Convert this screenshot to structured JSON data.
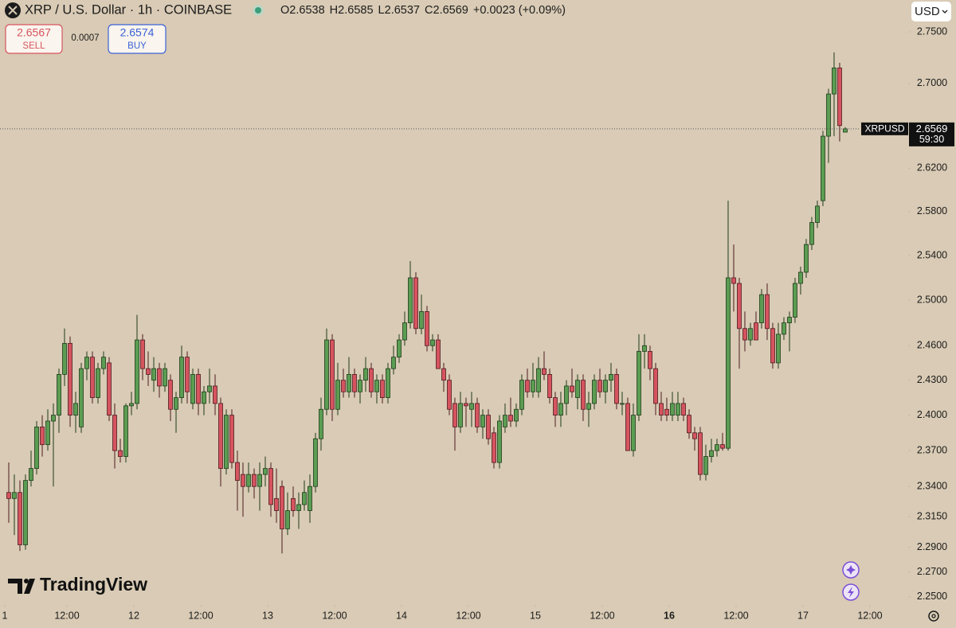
{
  "header": {
    "title": "XRP / U.S. Dollar · 1h · COINBASE",
    "ohlc_labels": [
      "O",
      "H",
      "L",
      "C"
    ],
    "change": "+0.0023 (+0.09%)"
  },
  "trade": {
    "sell_price": 2.6567,
    "sell_label": "SELL",
    "spread": 0.0007,
    "buy_price": 2.6574,
    "buy_label": "BUY"
  },
  "currency": "USD",
  "branding": "TradingView",
  "chart_data": {
    "type": "candlestick",
    "up_color": "#5b9d52",
    "down_color": "#d6545f",
    "log_scale": true,
    "grid": false,
    "ylim": [
      2.2436,
      2.7813
    ],
    "yticks": [
      {
        "value": 2.75,
        "label": "2.7500"
      },
      {
        "value": 2.7,
        "label": "2.7000"
      },
      {
        "value": 2.62,
        "label": "2.6200"
      },
      {
        "value": 2.58,
        "label": "2.5800"
      },
      {
        "value": 2.54,
        "label": "2.5400"
      },
      {
        "value": 2.5,
        "label": "2.5000"
      },
      {
        "value": 2.46,
        "label": "2.4600"
      },
      {
        "value": 2.43,
        "label": "2.4300"
      },
      {
        "value": 2.4,
        "label": "2.4000"
      },
      {
        "value": 2.37,
        "label": "2.3700"
      },
      {
        "value": 2.34,
        "label": "2.3400"
      },
      {
        "value": 2.315,
        "label": "2.3150"
      },
      {
        "value": 2.29,
        "label": "2.2900"
      },
      {
        "value": 2.27,
        "label": "2.2700"
      },
      {
        "value": 2.25,
        "label": "2.2500"
      }
    ],
    "xlim": [
      -1.571,
      161.29
    ],
    "xticks": [
      {
        "value": -0.71,
        "label": "1"
      },
      {
        "value": 10.43,
        "label": "12:00"
      },
      {
        "value": 22.43,
        "label": "12"
      },
      {
        "value": 34.43,
        "label": "12:00"
      },
      {
        "value": 46.43,
        "label": "13"
      },
      {
        "value": 58.43,
        "label": "12:00"
      },
      {
        "value": 70.43,
        "label": "14"
      },
      {
        "value": 82.43,
        "label": "12:00"
      },
      {
        "value": 94.43,
        "label": "15"
      },
      {
        "value": 106.43,
        "label": "12:00"
      },
      {
        "value": 118.43,
        "label": "16",
        "bold": true
      },
      {
        "value": 130.43,
        "label": "12:00"
      },
      {
        "value": 142.43,
        "label": "17"
      },
      {
        "value": 154.43,
        "label": "12:00"
      }
    ],
    "open": [
      2.335,
      2.33,
      2.335,
      2.292,
      2.345,
      2.355,
      2.39,
      2.375,
      2.395,
      2.4,
      2.435,
      2.462,
      2.4,
      2.39,
      2.44,
      2.45,
      2.415,
      2.44,
      2.445,
      2.4,
      2.37,
      2.365,
      2.408,
      2.41,
      2.465,
      2.44,
      2.43,
      2.44,
      2.425,
      2.43,
      2.405,
      2.415,
      2.45,
      2.41,
      2.435,
      2.41,
      2.42,
      2.425,
      2.41,
      2.355,
      2.4,
      2.36,
      2.35,
      2.34,
      2.35,
      2.34,
      2.35,
      2.355,
      2.33,
      2.34,
      2.305,
      2.33,
      2.32,
      2.325,
      2.32,
      2.34,
      2.38,
      2.405,
      2.465,
      2.405,
      2.43,
      2.42,
      2.435,
      2.42,
      2.43,
      2.44,
      2.42,
      2.43,
      2.415,
      2.44,
      2.45,
      2.465,
      2.48,
      2.52,
      2.475,
      2.49,
      2.46,
      2.465,
      2.44,
      2.43,
      2.41,
      2.39,
      2.41,
      2.405,
      2.41,
      2.39,
      2.4,
      2.385,
      2.36,
      2.39,
      2.4,
      2.395,
      2.405,
      2.43,
      2.42,
      2.42,
      2.44,
      2.435,
      2.415,
      2.4,
      2.41,
      2.425,
      2.415,
      2.43,
      2.405,
      2.41,
      2.43,
      2.42,
      2.43,
      2.435,
      2.41,
      2.41,
      2.37,
      2.4,
      2.455,
      2.455,
      2.44,
      2.41,
      2.405,
      2.4,
      2.4,
      2.41,
      2.4,
      2.385,
      2.385,
      2.35,
      2.365,
      2.37,
      2.375,
      2.372,
      2.52,
      2.515,
      2.475,
      2.465,
      2.48,
      2.48,
      2.505,
      2.475,
      2.445,
      2.47,
      2.48,
      2.485,
      2.515,
      2.525,
      2.55,
      2.57,
      2.59,
      2.65,
      2.69,
      2.715,
      2.6538
    ],
    "high": [
      2.36,
      2.35,
      2.345,
      2.35,
      2.37,
      2.395,
      2.4,
      2.405,
      2.41,
      2.44,
      2.475,
      2.468,
      2.42,
      2.445,
      2.455,
      2.455,
      2.445,
      2.455,
      2.45,
      2.41,
      2.38,
      2.41,
      2.42,
      2.487,
      2.47,
      2.455,
      2.45,
      2.445,
      2.445,
      2.435,
      2.42,
      2.46,
      2.455,
      2.44,
      2.44,
      2.425,
      2.44,
      2.435,
      2.415,
      2.405,
      2.405,
      2.37,
      2.36,
      2.36,
      2.355,
      2.36,
      2.365,
      2.36,
      2.355,
      2.345,
      2.335,
      2.34,
      2.335,
      2.345,
      2.35,
      2.385,
      2.415,
      2.475,
      2.47,
      2.445,
      2.44,
      2.45,
      2.44,
      2.435,
      2.45,
      2.445,
      2.435,
      2.435,
      2.445,
      2.46,
      2.47,
      2.49,
      2.535,
      2.525,
      2.505,
      2.495,
      2.47,
      2.47,
      2.445,
      2.435,
      2.415,
      2.42,
      2.415,
      2.42,
      2.415,
      2.405,
      2.405,
      2.39,
      2.4,
      2.41,
      2.415,
      2.41,
      2.435,
      2.44,
      2.445,
      2.45,
      2.455,
      2.44,
      2.42,
      2.42,
      2.43,
      2.44,
      2.435,
      2.435,
      2.42,
      2.435,
      2.44,
      2.435,
      2.445,
      2.44,
      2.42,
      2.415,
      2.41,
      2.47,
      2.47,
      2.46,
      2.445,
      2.42,
      2.415,
      2.42,
      2.42,
      2.415,
      2.405,
      2.39,
      2.39,
      2.375,
      2.38,
      2.38,
      2.385,
      2.59,
      2.55,
      2.52,
      2.49,
      2.48,
      2.49,
      2.51,
      2.515,
      2.48,
      2.48,
      2.485,
      2.49,
      2.52,
      2.53,
      2.555,
      2.575,
      2.59,
      2.655,
      2.695,
      2.73,
      2.72,
      2.6585
    ],
    "low": [
      2.31,
      2.3,
      2.287,
      2.288,
      2.34,
      2.35,
      2.365,
      2.37,
      2.34,
      2.385,
      2.425,
      2.39,
      2.385,
      2.385,
      2.43,
      2.41,
      2.41,
      2.435,
      2.395,
      2.355,
      2.36,
      2.36,
      2.4,
      2.405,
      2.43,
      2.425,
      2.42,
      2.415,
      2.42,
      2.395,
      2.385,
      2.41,
      2.41,
      2.405,
      2.4,
      2.4,
      2.41,
      2.4,
      2.34,
      2.35,
      2.355,
      2.32,
      2.315,
      2.335,
      2.33,
      2.32,
      2.34,
      2.315,
      2.31,
      2.285,
      2.3,
      2.315,
      2.305,
      2.32,
      2.31,
      2.335,
      2.37,
      2.4,
      2.395,
      2.4,
      2.415,
      2.415,
      2.415,
      2.41,
      2.42,
      2.415,
      2.41,
      2.41,
      2.41,
      2.435,
      2.445,
      2.46,
      2.475,
      2.47,
      2.47,
      2.455,
      2.455,
      2.44,
      2.42,
      2.4,
      2.37,
      2.385,
      2.39,
      2.39,
      2.385,
      2.38,
      2.375,
      2.355,
      2.355,
      2.385,
      2.39,
      2.39,
      2.4,
      2.415,
      2.415,
      2.415,
      2.43,
      2.41,
      2.39,
      2.39,
      2.4,
      2.415,
      2.405,
      2.395,
      2.39,
      2.405,
      2.415,
      2.41,
      2.42,
      2.405,
      2.4,
      2.37,
      2.365,
      2.395,
      2.44,
      2.43,
      2.4,
      2.395,
      2.395,
      2.395,
      2.395,
      2.395,
      2.38,
      2.37,
      2.345,
      2.345,
      2.36,
      2.365,
      2.37,
      2.37,
      2.49,
      2.44,
      2.455,
      2.46,
      2.465,
      2.475,
      2.465,
      2.44,
      2.44,
      2.465,
      2.455,
      2.48,
      2.505,
      2.52,
      2.545,
      2.565,
      2.585,
      2.625,
      2.65,
      2.645,
      2.6537
    ],
    "close": [
      2.33,
      2.335,
      2.292,
      2.345,
      2.355,
      2.39,
      2.375,
      2.395,
      2.4,
      2.435,
      2.462,
      2.4,
      2.41,
      2.44,
      2.45,
      2.415,
      2.44,
      2.45,
      2.4,
      2.37,
      2.365,
      2.408,
      2.41,
      2.465,
      2.44,
      2.435,
      2.44,
      2.425,
      2.44,
      2.405,
      2.415,
      2.45,
      2.42,
      2.435,
      2.41,
      2.42,
      2.425,
      2.41,
      2.355,
      2.4,
      2.36,
      2.345,
      2.34,
      2.35,
      2.34,
      2.35,
      2.355,
      2.325,
      2.32,
      2.305,
      2.32,
      2.32,
      2.325,
      2.335,
      2.34,
      2.38,
      2.405,
      2.465,
      2.405,
      2.43,
      2.42,
      2.435,
      2.42,
      2.43,
      2.44,
      2.42,
      2.43,
      2.415,
      2.44,
      2.45,
      2.465,
      2.48,
      2.52,
      2.475,
      2.49,
      2.46,
      2.465,
      2.44,
      2.43,
      2.405,
      2.39,
      2.41,
      2.408,
      2.41,
      2.39,
      2.4,
      2.38,
      2.36,
      2.395,
      2.4,
      2.395,
      2.405,
      2.43,
      2.42,
      2.43,
      2.44,
      2.435,
      2.415,
      2.4,
      2.41,
      2.425,
      2.42,
      2.43,
      2.405,
      2.41,
      2.43,
      2.42,
      2.43,
      2.435,
      2.41,
      2.41,
      2.37,
      2.4,
      2.455,
      2.46,
      2.44,
      2.41,
      2.4,
      2.4,
      2.41,
      2.41,
      2.4,
      2.385,
      2.38,
      2.35,
      2.365,
      2.37,
      2.375,
      2.372,
      2.52,
      2.515,
      2.475,
      2.465,
      2.475,
      2.465,
      2.505,
      2.475,
      2.445,
      2.47,
      2.48,
      2.485,
      2.515,
      2.525,
      2.55,
      2.57,
      2.585,
      2.65,
      2.69,
      2.715,
      2.66,
      2.6569
    ],
    "last_price": {
      "symbol": "XRPUSD",
      "countdown": "59:30"
    }
  }
}
